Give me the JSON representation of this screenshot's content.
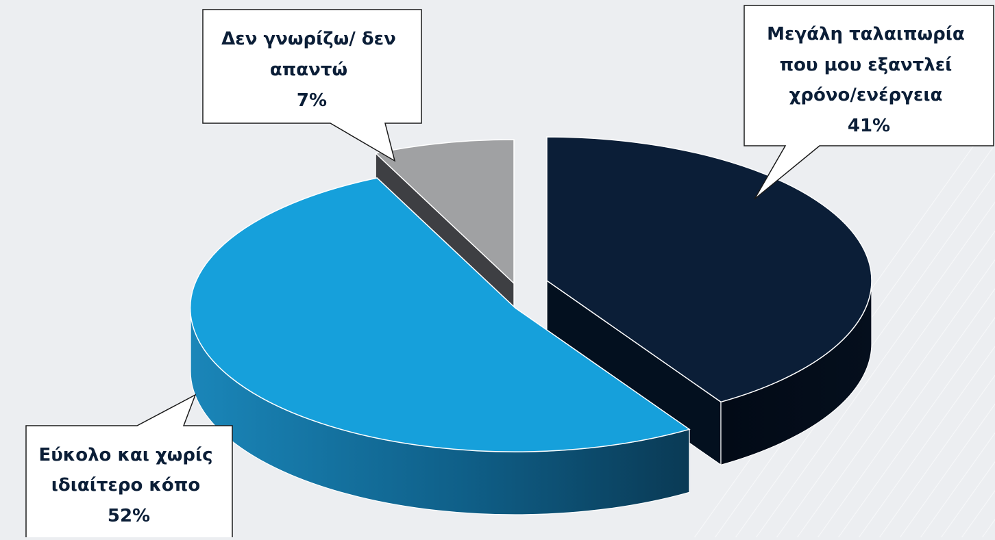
{
  "chart_data": {
    "type": "pie",
    "style": "3d-exploded",
    "slices": [
      {
        "label_lines": [
          "Μεγάλη ταλαιπωρία",
          "που μου εξαντλεί",
          "χρόνο/ενέργεια"
        ],
        "value_label": "41%",
        "value": 41,
        "color": "#0b1e37"
      },
      {
        "label_lines": [
          "Εύκολο και χωρίς",
          "ιδιαίτερο κόπο"
        ],
        "value_label": "52%",
        "value": 52,
        "color": "#16a0db"
      },
      {
        "label_lines": [
          "Δεν γνωρίζω/ δεν",
          "απαντώ"
        ],
        "value_label": "7%",
        "value": 7,
        "color": "#a0a1a3"
      }
    ],
    "legend": "callouts",
    "grid": false
  }
}
